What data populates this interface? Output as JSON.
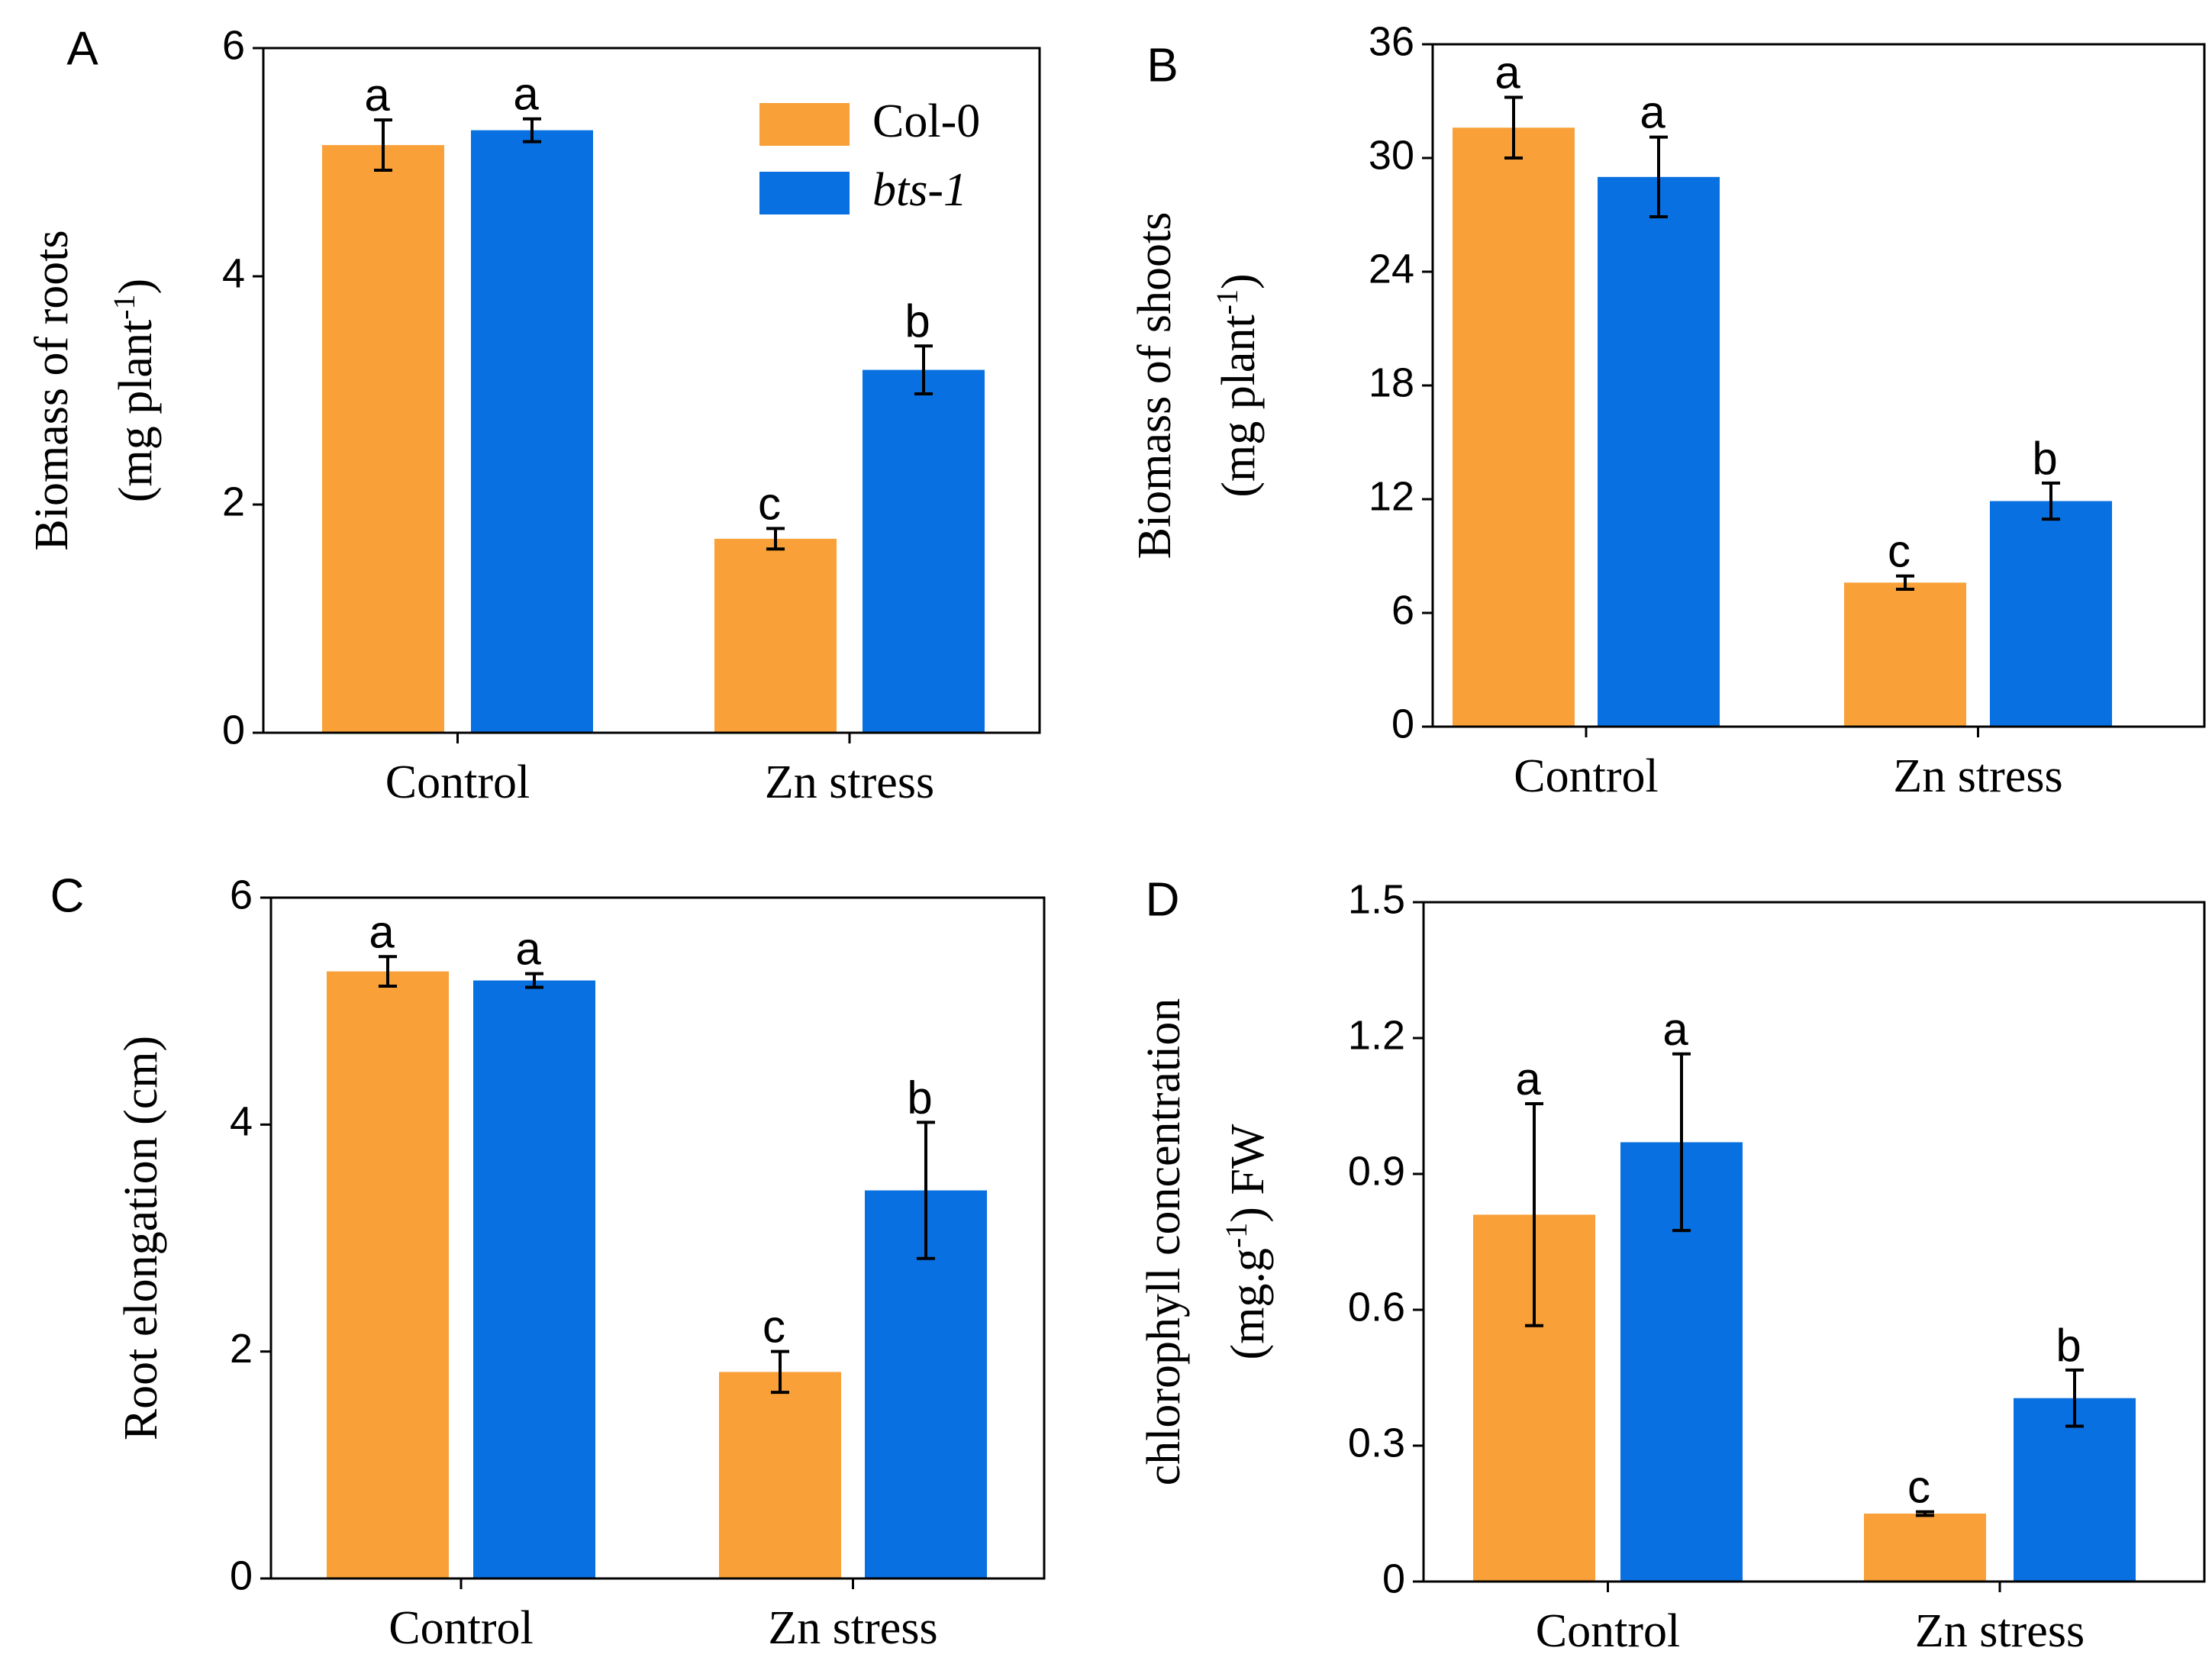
{
  "legend": {
    "position": "top-right of panel A",
    "entries": [
      {
        "label": "Col-0",
        "italic": false,
        "color": "#F9A038"
      },
      {
        "label": "bts-1",
        "italic": true,
        "color": "#0870E0"
      }
    ]
  },
  "chart_data": [
    {
      "panel": "A",
      "type": "bar",
      "categories": [
        "Control",
        "Zn stress"
      ],
      "ylabel_lines": [
        "Biomass of roots",
        "(mg plant",
        "-1",
        ")"
      ],
      "ylim": [
        0,
        6
      ],
      "yticks": [
        0,
        2,
        4,
        6
      ],
      "ytick_labels": [
        "0",
        "2",
        "4",
        "6"
      ],
      "series": [
        {
          "name": "Col-0",
          "color": "#F9A038",
          "values": [
            5.15,
            1.7
          ],
          "errors": [
            0.22,
            0.09
          ],
          "letters": [
            "a",
            "c"
          ]
        },
        {
          "name": "bts-1",
          "color": "#0870E0",
          "values": [
            5.28,
            3.18
          ],
          "errors": [
            0.1,
            0.21
          ],
          "letters": [
            "a",
            "b"
          ]
        }
      ]
    },
    {
      "panel": "B",
      "type": "bar",
      "categories": [
        "Control",
        "Zn stress"
      ],
      "ylabel_lines": [
        "Biomass of shoots",
        "(mg plant",
        "-1",
        ")"
      ],
      "ylim": [
        0,
        36
      ],
      "yticks": [
        0,
        6,
        12,
        18,
        24,
        30,
        36
      ],
      "ytick_labels": [
        "0",
        "6",
        "12",
        "18",
        "24",
        "30",
        "36"
      ],
      "series": [
        {
          "name": "Col-0",
          "color": "#F9A038",
          "values": [
            31.6,
            7.6
          ],
          "errors": [
            1.6,
            0.35
          ],
          "letters": [
            "a",
            "c"
          ]
        },
        {
          "name": "bts-1",
          "color": "#0870E0",
          "values": [
            29.0,
            11.9
          ],
          "errors": [
            2.1,
            0.95
          ],
          "letters": [
            "a",
            "b"
          ]
        }
      ]
    },
    {
      "panel": "C",
      "type": "bar",
      "categories": [
        "Control",
        "Zn stress"
      ],
      "ylabel_lines": [
        "Root elongation (cm)"
      ],
      "ylim": [
        0,
        6
      ],
      "yticks": [
        0,
        2,
        4,
        6
      ],
      "ytick_labels": [
        "0",
        "2",
        "4",
        "6"
      ],
      "series": [
        {
          "name": "Col-0",
          "color": "#F9A038",
          "values": [
            5.35,
            1.82
          ],
          "errors": [
            0.13,
            0.18
          ],
          "letters": [
            "a",
            "c"
          ]
        },
        {
          "name": "bts-1",
          "color": "#0870E0",
          "values": [
            5.27,
            3.42
          ],
          "errors": [
            0.06,
            0.6
          ],
          "letters": [
            "a",
            "b"
          ]
        }
      ]
    },
    {
      "panel": "D",
      "type": "bar",
      "categories": [
        "Control",
        "Zn stress"
      ],
      "ylabel_lines": [
        "chlorophyll concentration",
        "(mg.g",
        "-1",
        ") FW"
      ],
      "ylim": [
        0,
        1.5
      ],
      "yticks": [
        0,
        0.3,
        0.6,
        0.9,
        1.2,
        1.5
      ],
      "ytick_labels": [
        "0",
        "0.3",
        "0.6",
        "0.9",
        "1.2",
        "1.5"
      ],
      "series": [
        {
          "name": "Col-0",
          "color": "#F9A038",
          "values": [
            0.81,
            0.15
          ],
          "errors": [
            0.245,
            0.004
          ],
          "letters": [
            "a",
            "c"
          ]
        },
        {
          "name": "bts-1",
          "color": "#0870E0",
          "values": [
            0.97,
            0.405
          ],
          "errors": [
            0.195,
            0.062
          ],
          "letters": [
            "a",
            "b"
          ]
        }
      ]
    }
  ]
}
